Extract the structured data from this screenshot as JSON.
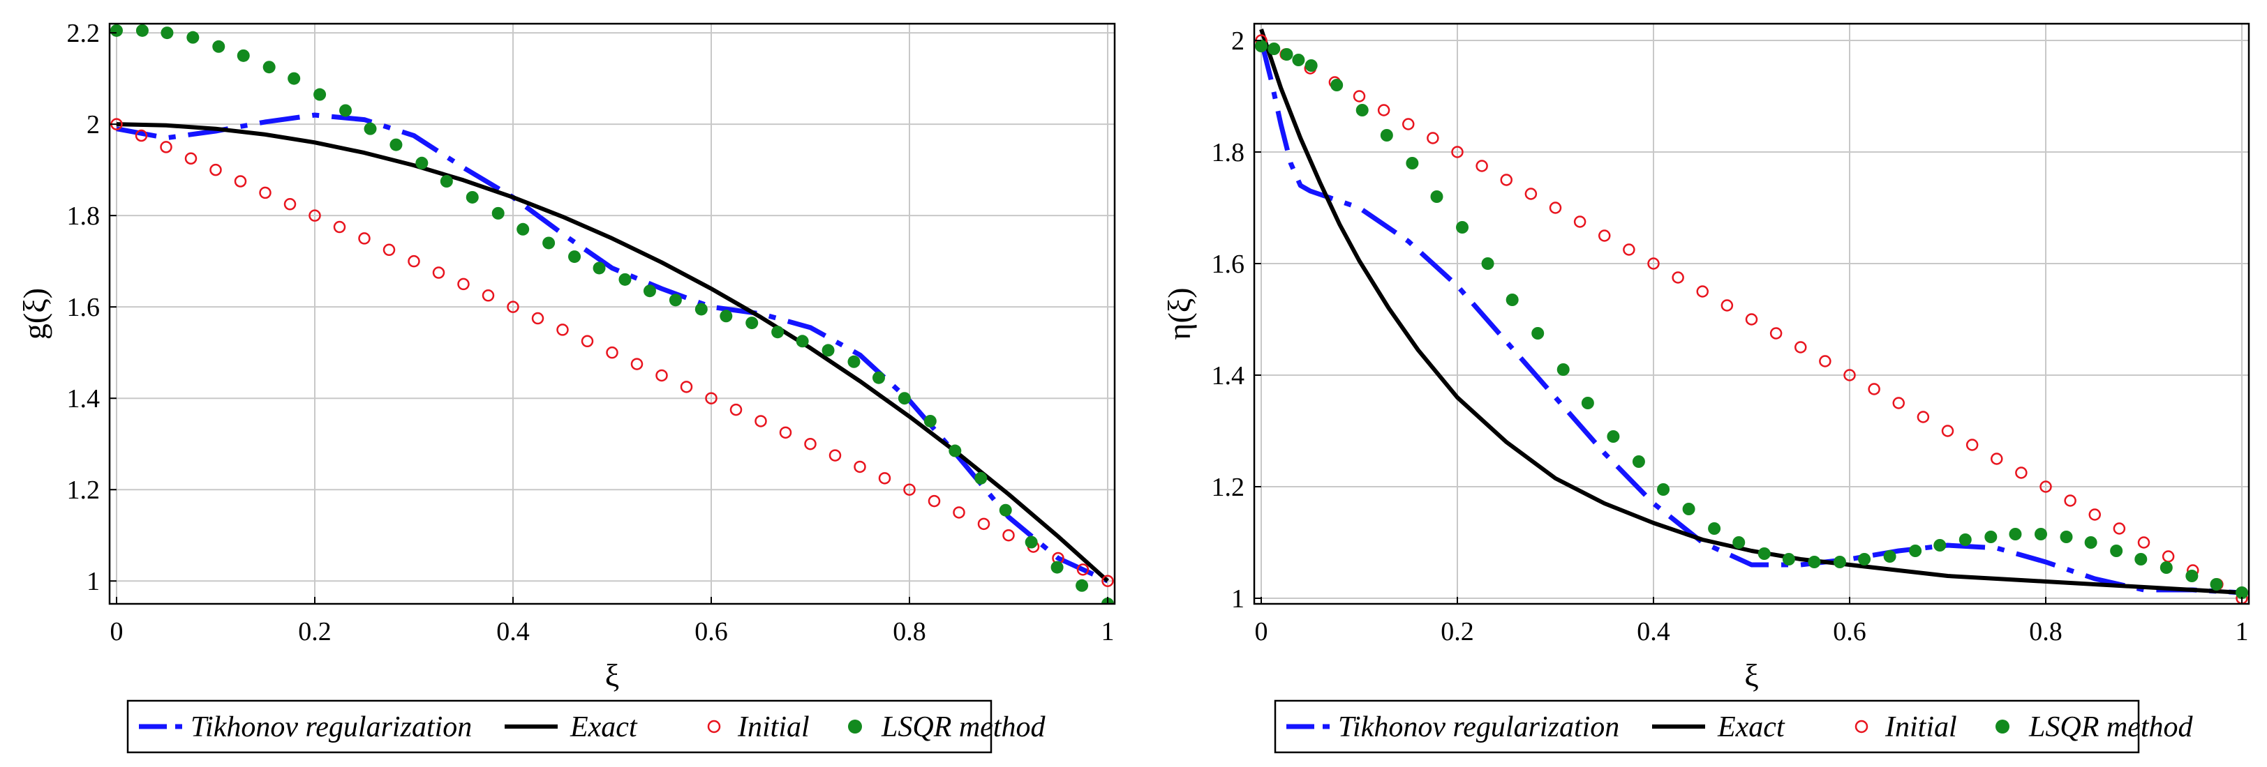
{
  "chart_data": [
    {
      "type": "line",
      "xlabel": "ξ",
      "ylabel": "g(ξ)",
      "xlim": [
        0,
        1
      ],
      "ylim": [
        0.95,
        2.22
      ],
      "xticks": [
        0,
        0.2,
        0.4,
        0.6,
        0.8,
        1
      ],
      "xtick_labels": [
        "0",
        "0.2",
        "0.4",
        "0.6",
        "0.8",
        "1"
      ],
      "yticks": [
        1,
        1.2,
        1.4,
        1.6,
        1.8,
        2,
        2.2
      ],
      "ytick_labels": [
        "1",
        "1.2",
        "1.4",
        "1.6",
        "1.8",
        "2",
        "2.2"
      ],
      "grid": true,
      "legend_position": "bottom",
      "series": [
        {
          "name": "Tikhonov regularization",
          "style": "dashdot",
          "color": "#1414ff",
          "x": [
            0,
            0.05,
            0.1,
            0.15,
            0.2,
            0.25,
            0.3,
            0.35,
            0.4,
            0.45,
            0.5,
            0.55,
            0.6,
            0.65,
            0.7,
            0.75,
            0.8,
            0.85,
            0.9,
            0.95,
            1.0
          ],
          "y": [
            1.99,
            1.97,
            1.985,
            2.005,
            2.02,
            2.01,
            1.975,
            1.905,
            1.84,
            1.76,
            1.685,
            1.64,
            1.6,
            1.585,
            1.555,
            1.495,
            1.395,
            1.27,
            1.14,
            1.05,
            1.0
          ]
        },
        {
          "name": "Exact",
          "style": "solid",
          "color": "#000000",
          "x": [
            0,
            0.05,
            0.1,
            0.15,
            0.2,
            0.25,
            0.3,
            0.35,
            0.4,
            0.45,
            0.5,
            0.55,
            0.6,
            0.65,
            0.7,
            0.75,
            0.8,
            0.85,
            0.9,
            0.95,
            1.0
          ],
          "y": [
            2.0,
            1.9975,
            1.99,
            1.9775,
            1.96,
            1.9375,
            1.91,
            1.8775,
            1.84,
            1.7975,
            1.75,
            1.6975,
            1.64,
            1.5775,
            1.51,
            1.4375,
            1.36,
            1.2775,
            1.19,
            1.0975,
            1.0
          ]
        },
        {
          "name": "Initial",
          "style": "open-circle",
          "color": "#e8141e",
          "x": [
            0,
            0.025,
            0.05,
            0.075,
            0.1,
            0.125,
            0.15,
            0.175,
            0.2,
            0.225,
            0.25,
            0.275,
            0.3,
            0.325,
            0.35,
            0.375,
            0.4,
            0.425,
            0.45,
            0.475,
            0.5,
            0.525,
            0.55,
            0.575,
            0.6,
            0.625,
            0.65,
            0.675,
            0.7,
            0.725,
            0.75,
            0.775,
            0.8,
            0.825,
            0.85,
            0.875,
            0.9,
            0.925,
            0.95,
            0.975,
            1.0
          ],
          "y": [
            2.0,
            1.975,
            1.95,
            1.925,
            1.9,
            1.875,
            1.85,
            1.825,
            1.8,
            1.775,
            1.75,
            1.725,
            1.7,
            1.675,
            1.65,
            1.625,
            1.6,
            1.575,
            1.55,
            1.525,
            1.5,
            1.475,
            1.45,
            1.425,
            1.4,
            1.375,
            1.35,
            1.325,
            1.3,
            1.275,
            1.25,
            1.225,
            1.2,
            1.175,
            1.15,
            1.125,
            1.1,
            1.075,
            1.05,
            1.025,
            1.0
          ]
        },
        {
          "name": "LSQR method",
          "style": "filled-dot",
          "color": "#128a1e",
          "x": [
            0,
            0.026,
            0.051,
            0.077,
            0.103,
            0.128,
            0.154,
            0.179,
            0.205,
            0.231,
            0.256,
            0.282,
            0.308,
            0.333,
            0.359,
            0.385,
            0.41,
            0.436,
            0.462,
            0.487,
            0.513,
            0.538,
            0.564,
            0.59,
            0.615,
            0.641,
            0.667,
            0.692,
            0.718,
            0.744,
            0.769,
            0.795,
            0.821,
            0.846,
            0.872,
            0.897,
            0.923,
            0.949,
            0.974,
            1.0
          ],
          "y": [
            2.205,
            2.205,
            2.2,
            2.19,
            2.17,
            2.15,
            2.125,
            2.1,
            2.065,
            2.03,
            1.99,
            1.955,
            1.915,
            1.875,
            1.84,
            1.805,
            1.77,
            1.74,
            1.71,
            1.685,
            1.66,
            1.635,
            1.615,
            1.595,
            1.58,
            1.565,
            1.545,
            1.525,
            1.505,
            1.48,
            1.445,
            1.4,
            1.35,
            1.285,
            1.225,
            1.155,
            1.085,
            1.03,
            0.99,
            0.95
          ]
        }
      ]
    },
    {
      "type": "line",
      "xlabel": "ξ",
      "ylabel": "η(ξ)",
      "xlim": [
        0,
        1
      ],
      "ylim": [
        0.99,
        2.03
      ],
      "xticks": [
        0,
        0.2,
        0.4,
        0.6,
        0.8,
        1
      ],
      "xtick_labels": [
        "0",
        "0.2",
        "0.4",
        "0.6",
        "0.8",
        "1"
      ],
      "yticks": [
        1,
        1.2,
        1.4,
        1.6,
        1.8,
        2
      ],
      "ytick_labels": [
        "1",
        "1.2",
        "1.4",
        "1.6",
        "1.8",
        "2"
      ],
      "grid": true,
      "legend_position": "bottom",
      "series": [
        {
          "name": "Tikhonov regularization",
          "style": "dashdot",
          "color": "#1414ff",
          "x": [
            0,
            0.01,
            0.02,
            0.03,
            0.04,
            0.05,
            0.1,
            0.15,
            0.2,
            0.25,
            0.3,
            0.35,
            0.4,
            0.45,
            0.5,
            0.55,
            0.6,
            0.65,
            0.7,
            0.75,
            0.8,
            0.85,
            0.9,
            0.95,
            1.0
          ],
          "y": [
            2.0,
            1.93,
            1.85,
            1.78,
            1.74,
            1.73,
            1.7,
            1.64,
            1.56,
            1.46,
            1.36,
            1.26,
            1.17,
            1.1,
            1.06,
            1.06,
            1.07,
            1.085,
            1.095,
            1.09,
            1.065,
            1.035,
            1.015,
            1.015,
            1.01
          ]
        },
        {
          "name": "Exact",
          "style": "solid",
          "color": "#000000",
          "x": [
            0,
            0.02,
            0.04,
            0.06,
            0.08,
            0.1,
            0.13,
            0.16,
            0.2,
            0.25,
            0.3,
            0.35,
            0.4,
            0.45,
            0.5,
            0.55,
            0.6,
            0.65,
            0.7,
            0.75,
            0.8,
            0.85,
            0.9,
            0.95,
            1.0
          ],
          "y": [
            2.02,
            1.915,
            1.825,
            1.745,
            1.67,
            1.605,
            1.52,
            1.445,
            1.36,
            1.28,
            1.215,
            1.17,
            1.135,
            1.105,
            1.085,
            1.07,
            1.06,
            1.05,
            1.04,
            1.035,
            1.03,
            1.025,
            1.02,
            1.015,
            1.01
          ]
        },
        {
          "name": "Initial",
          "style": "open-circle",
          "color": "#e8141e",
          "x": [
            0,
            0.025,
            0.05,
            0.075,
            0.1,
            0.125,
            0.15,
            0.175,
            0.2,
            0.225,
            0.25,
            0.275,
            0.3,
            0.325,
            0.35,
            0.375,
            0.4,
            0.425,
            0.45,
            0.475,
            0.5,
            0.525,
            0.55,
            0.575,
            0.6,
            0.625,
            0.65,
            0.675,
            0.7,
            0.725,
            0.75,
            0.775,
            0.8,
            0.825,
            0.85,
            0.875,
            0.9,
            0.925,
            0.95,
            0.975,
            1.0
          ],
          "y": [
            2.0,
            1.975,
            1.95,
            1.925,
            1.9,
            1.875,
            1.85,
            1.825,
            1.8,
            1.775,
            1.75,
            1.725,
            1.7,
            1.675,
            1.65,
            1.625,
            1.6,
            1.575,
            1.55,
            1.525,
            1.5,
            1.475,
            1.45,
            1.425,
            1.4,
            1.375,
            1.35,
            1.325,
            1.3,
            1.275,
            1.25,
            1.225,
            1.2,
            1.175,
            1.15,
            1.125,
            1.1,
            1.075,
            1.05,
            1.025,
            1.0
          ]
        },
        {
          "name": "LSQR method",
          "style": "filled-dot",
          "color": "#128a1e",
          "x": [
            0,
            0.013,
            0.026,
            0.038,
            0.051,
            0.077,
            0.103,
            0.128,
            0.154,
            0.179,
            0.205,
            0.231,
            0.256,
            0.282,
            0.308,
            0.333,
            0.359,
            0.385,
            0.41,
            0.436,
            0.462,
            0.487,
            0.513,
            0.538,
            0.564,
            0.59,
            0.615,
            0.641,
            0.667,
            0.692,
            0.718,
            0.744,
            0.769,
            0.795,
            0.821,
            0.846,
            0.872,
            0.897,
            0.923,
            0.949,
            0.974,
            1.0
          ],
          "y": [
            1.99,
            1.985,
            1.975,
            1.965,
            1.955,
            1.92,
            1.875,
            1.83,
            1.78,
            1.72,
            1.665,
            1.6,
            1.535,
            1.475,
            1.41,
            1.35,
            1.29,
            1.245,
            1.195,
            1.16,
            1.125,
            1.1,
            1.08,
            1.07,
            1.065,
            1.065,
            1.07,
            1.075,
            1.085,
            1.095,
            1.105,
            1.11,
            1.115,
            1.115,
            1.11,
            1.1,
            1.085,
            1.07,
            1.055,
            1.04,
            1.025,
            1.01
          ]
        }
      ]
    }
  ]
}
